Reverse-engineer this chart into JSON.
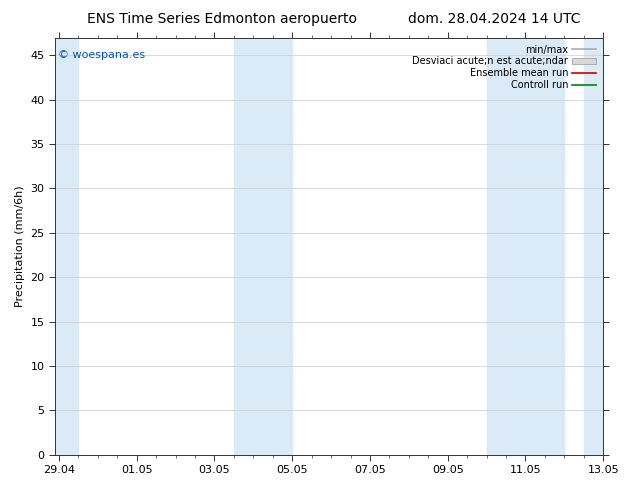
{
  "title_left": "ENS Time Series Edmonton aeropuerto",
  "title_right": "dom. 28.04.2024 14 UTC",
  "ylabel": "Precipitation (mm/6h)",
  "ylim": [
    0,
    47
  ],
  "yticks": [
    0,
    5,
    10,
    15,
    20,
    25,
    30,
    35,
    40,
    45
  ],
  "watermark": "© woespana.es",
  "background_color": "#ffffff",
  "plot_bg_color": "#ffffff",
  "shade_color": "#daeaf7",
  "x_tick_labels": [
    "29.04",
    "01.05",
    "03.05",
    "05.05",
    "07.05",
    "09.05",
    "11.05",
    "13.05"
  ],
  "x_tick_positions": [
    0,
    2,
    4,
    6,
    8,
    10,
    12,
    14
  ],
  "shade_regions": [
    [
      -0.1,
      0.5
    ],
    [
      4.5,
      6.0
    ],
    [
      11.0,
      13.0
    ],
    [
      13.5,
      14.2
    ]
  ],
  "total_x": 14,
  "font_size_title": 10,
  "font_size_axis": 8,
  "font_size_tick": 8,
  "font_size_legend": 7,
  "font_size_watermark": 8
}
